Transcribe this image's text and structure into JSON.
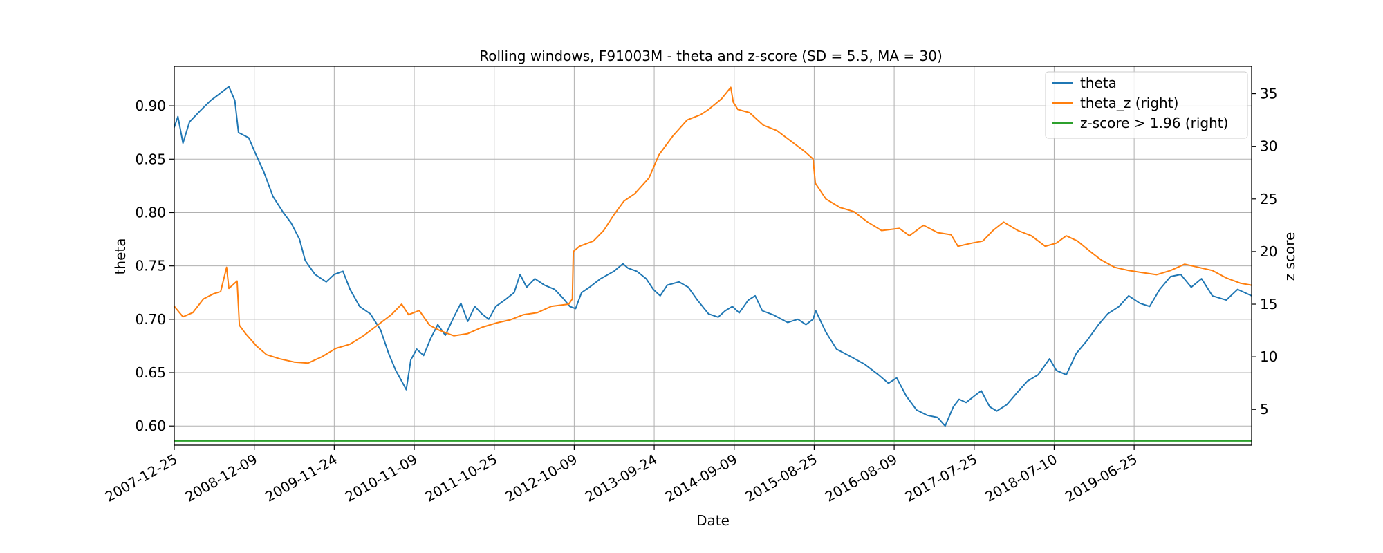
{
  "chart_data": {
    "type": "line",
    "title": "Rolling windows, F91003M - theta and z-score (SD = 5.5, MA = 30)",
    "xlabel": "Date",
    "ylabel_left": "theta",
    "ylabel_right": "z score",
    "x_range": [
      "2007-12-25",
      "2020-11-20"
    ],
    "ylim_left": [
      0.582,
      0.937
    ],
    "ylim_right": [
      1.6,
      37.6
    ],
    "x_ticks": [
      "2007-12-25",
      "2008-12-09",
      "2009-11-24",
      "2010-11-09",
      "2011-10-25",
      "2012-10-09",
      "2013-09-24",
      "2014-09-09",
      "2015-08-25",
      "2016-08-09",
      "2017-07-25",
      "2018-07-10",
      "2019-06-25"
    ],
    "y_ticks_left": [
      "0.60",
      "0.65",
      "0.70",
      "0.75",
      "0.80",
      "0.85",
      "0.90"
    ],
    "y_ticks_right": [
      "5",
      "10",
      "15",
      "20",
      "25",
      "30",
      "35"
    ],
    "grid": true,
    "legend_position": "top-right",
    "series": [
      {
        "name": "theta",
        "axis": "left",
        "color": "#1f77b4",
        "points": [
          [
            "2007-12-25",
            0.88
          ],
          [
            "2008-01-10",
            0.89
          ],
          [
            "2008-02-01",
            0.865
          ],
          [
            "2008-03-01",
            0.885
          ],
          [
            "2008-04-15",
            0.895
          ],
          [
            "2008-06-01",
            0.905
          ],
          [
            "2008-07-15",
            0.912
          ],
          [
            "2008-08-20",
            0.918
          ],
          [
            "2008-09-15",
            0.905
          ],
          [
            "2008-10-01",
            0.875
          ],
          [
            "2008-11-15",
            0.87
          ],
          [
            "2008-12-15",
            0.855
          ],
          [
            "2009-01-20",
            0.838
          ],
          [
            "2009-03-01",
            0.815
          ],
          [
            "2009-04-15",
            0.8
          ],
          [
            "2009-05-20",
            0.79
          ],
          [
            "2009-06-25",
            0.775
          ],
          [
            "2009-07-20",
            0.755
          ],
          [
            "2009-09-01",
            0.742
          ],
          [
            "2009-10-20",
            0.735
          ],
          [
            "2009-11-24",
            0.742
          ],
          [
            "2010-01-01",
            0.745
          ],
          [
            "2010-02-01",
            0.728
          ],
          [
            "2010-03-15",
            0.712
          ],
          [
            "2010-05-01",
            0.705
          ],
          [
            "2010-06-15",
            0.69
          ],
          [
            "2010-07-20",
            0.668
          ],
          [
            "2010-08-20",
            0.652
          ],
          [
            "2010-09-15",
            0.642
          ],
          [
            "2010-10-05",
            0.634
          ],
          [
            "2010-10-25",
            0.662
          ],
          [
            "2010-11-20",
            0.672
          ],
          [
            "2010-12-20",
            0.666
          ],
          [
            "2011-01-20",
            0.682
          ],
          [
            "2011-02-20",
            0.695
          ],
          [
            "2011-03-25",
            0.685
          ],
          [
            "2011-05-01",
            0.702
          ],
          [
            "2011-06-01",
            0.715
          ],
          [
            "2011-07-01",
            0.698
          ],
          [
            "2011-08-01",
            0.712
          ],
          [
            "2011-09-01",
            0.705
          ],
          [
            "2011-10-01",
            0.7
          ],
          [
            "2011-11-01",
            0.712
          ],
          [
            "2011-12-10",
            0.718
          ],
          [
            "2012-01-20",
            0.725
          ],
          [
            "2012-02-15",
            0.742
          ],
          [
            "2012-03-15",
            0.73
          ],
          [
            "2012-04-20",
            0.738
          ],
          [
            "2012-06-01",
            0.732
          ],
          [
            "2012-07-15",
            0.728
          ],
          [
            "2012-08-20",
            0.72
          ],
          [
            "2012-09-20",
            0.712
          ],
          [
            "2012-10-15",
            0.71
          ],
          [
            "2012-11-10",
            0.725
          ],
          [
            "2012-12-15",
            0.73
          ],
          [
            "2013-02-01",
            0.738
          ],
          [
            "2013-04-01",
            0.745
          ],
          [
            "2013-05-10",
            0.752
          ],
          [
            "2013-06-01",
            0.748
          ],
          [
            "2013-07-10",
            0.745
          ],
          [
            "2013-08-20",
            0.738
          ],
          [
            "2013-09-20",
            0.728
          ],
          [
            "2013-10-20",
            0.722
          ],
          [
            "2013-11-20",
            0.732
          ],
          [
            "2014-01-10",
            0.735
          ],
          [
            "2014-02-20",
            0.73
          ],
          [
            "2014-04-01",
            0.718
          ],
          [
            "2014-05-20",
            0.705
          ],
          [
            "2014-07-01",
            0.702
          ],
          [
            "2014-08-01",
            0.708
          ],
          [
            "2014-09-01",
            0.712
          ],
          [
            "2014-10-01",
            0.706
          ],
          [
            "2014-11-10",
            0.718
          ],
          [
            "2014-12-10",
            0.722
          ],
          [
            "2015-01-10",
            0.708
          ],
          [
            "2015-03-01",
            0.704
          ],
          [
            "2015-05-01",
            0.697
          ],
          [
            "2015-06-15",
            0.7
          ],
          [
            "2015-07-20",
            0.695
          ],
          [
            "2015-08-20",
            0.7
          ],
          [
            "2015-09-01",
            0.708
          ],
          [
            "2015-10-15",
            0.688
          ],
          [
            "2015-12-01",
            0.672
          ],
          [
            "2016-02-01",
            0.665
          ],
          [
            "2016-04-01",
            0.658
          ],
          [
            "2016-06-01",
            0.648
          ],
          [
            "2016-07-15",
            0.64
          ],
          [
            "2016-08-20",
            0.645
          ],
          [
            "2016-10-01",
            0.628
          ],
          [
            "2016-11-15",
            0.615
          ],
          [
            "2017-01-01",
            0.61
          ],
          [
            "2017-02-15",
            0.608
          ],
          [
            "2017-03-20",
            0.6
          ],
          [
            "2017-04-25",
            0.618
          ],
          [
            "2017-05-20",
            0.625
          ],
          [
            "2017-06-20",
            0.622
          ],
          [
            "2017-07-25",
            0.628
          ],
          [
            "2017-08-25",
            0.633
          ],
          [
            "2017-10-01",
            0.618
          ],
          [
            "2017-11-01",
            0.614
          ],
          [
            "2017-12-15",
            0.62
          ],
          [
            "2018-02-01",
            0.632
          ],
          [
            "2018-03-15",
            0.642
          ],
          [
            "2018-05-01",
            0.648
          ],
          [
            "2018-06-20",
            0.663
          ],
          [
            "2018-07-20",
            0.652
          ],
          [
            "2018-09-01",
            0.648
          ],
          [
            "2018-10-15",
            0.668
          ],
          [
            "2018-12-01",
            0.68
          ],
          [
            "2019-01-20",
            0.695
          ],
          [
            "2019-03-01",
            0.705
          ],
          [
            "2019-04-20",
            0.712
          ],
          [
            "2019-06-01",
            0.722
          ],
          [
            "2019-07-20",
            0.715
          ],
          [
            "2019-09-01",
            0.712
          ],
          [
            "2019-10-15",
            0.728
          ],
          [
            "2019-12-01",
            0.74
          ],
          [
            "2020-01-15",
            0.742
          ],
          [
            "2020-03-01",
            0.73
          ],
          [
            "2020-04-15",
            0.738
          ],
          [
            "2020-06-01",
            0.722
          ],
          [
            "2020-08-01",
            0.718
          ],
          [
            "2020-09-20",
            0.728
          ],
          [
            "2020-11-20",
            0.722
          ]
        ]
      },
      {
        "name": "theta_z (right)",
        "axis": "right",
        "color": "#ff7f0e",
        "points": [
          [
            "2007-12-25",
            14.8
          ],
          [
            "2008-02-01",
            13.8
          ],
          [
            "2008-03-15",
            14.2
          ],
          [
            "2008-05-01",
            15.5
          ],
          [
            "2008-06-15",
            16.0
          ],
          [
            "2008-07-15",
            16.2
          ],
          [
            "2008-08-10",
            18.5
          ],
          [
            "2008-08-20",
            16.5
          ],
          [
            "2008-09-25",
            17.2
          ],
          [
            "2008-10-05",
            13.0
          ],
          [
            "2008-11-01",
            12.2
          ],
          [
            "2008-12-20",
            11.0
          ],
          [
            "2009-02-01",
            10.2
          ],
          [
            "2009-04-01",
            9.8
          ],
          [
            "2009-06-01",
            9.5
          ],
          [
            "2009-08-01",
            9.4
          ],
          [
            "2009-10-01",
            10.0
          ],
          [
            "2009-12-01",
            10.8
          ],
          [
            "2010-02-01",
            11.2
          ],
          [
            "2010-04-01",
            12.0
          ],
          [
            "2010-06-01",
            13.0
          ],
          [
            "2010-08-01",
            14.0
          ],
          [
            "2010-09-15",
            15.0
          ],
          [
            "2010-10-15",
            14.0
          ],
          [
            "2010-12-01",
            14.4
          ],
          [
            "2011-01-15",
            13.0
          ],
          [
            "2011-03-01",
            12.5
          ],
          [
            "2011-05-01",
            12.0
          ],
          [
            "2011-07-01",
            12.2
          ],
          [
            "2011-09-01",
            12.8
          ],
          [
            "2011-11-01",
            13.2
          ],
          [
            "2012-01-01",
            13.5
          ],
          [
            "2012-03-01",
            14.0
          ],
          [
            "2012-05-01",
            14.2
          ],
          [
            "2012-07-01",
            14.8
          ],
          [
            "2012-09-15",
            15.0
          ],
          [
            "2012-10-01",
            15.5
          ],
          [
            "2012-10-05",
            20.0
          ],
          [
            "2012-11-01",
            20.5
          ],
          [
            "2013-01-01",
            21.0
          ],
          [
            "2013-02-15",
            22.0
          ],
          [
            "2013-04-01",
            23.5
          ],
          [
            "2013-05-15",
            24.8
          ],
          [
            "2013-07-01",
            25.5
          ],
          [
            "2013-09-01",
            27.0
          ],
          [
            "2013-10-15",
            29.2
          ],
          [
            "2013-12-15",
            31.0
          ],
          [
            "2014-02-15",
            32.5
          ],
          [
            "2014-04-15",
            33.0
          ],
          [
            "2014-05-20",
            33.5
          ],
          [
            "2014-07-15",
            34.5
          ],
          [
            "2014-08-25",
            35.6
          ],
          [
            "2014-09-05",
            34.2
          ],
          [
            "2014-09-25",
            33.5
          ],
          [
            "2014-11-15",
            33.2
          ],
          [
            "2015-01-15",
            32.0
          ],
          [
            "2015-03-15",
            31.5
          ],
          [
            "2015-05-15",
            30.5
          ],
          [
            "2015-07-15",
            29.5
          ],
          [
            "2015-08-20",
            28.8
          ],
          [
            "2015-08-30",
            26.5
          ],
          [
            "2015-10-15",
            25.0
          ],
          [
            "2015-12-15",
            24.2
          ],
          [
            "2016-02-15",
            23.8
          ],
          [
            "2016-04-15",
            22.8
          ],
          [
            "2016-06-15",
            22.0
          ],
          [
            "2016-09-01",
            22.2
          ],
          [
            "2016-10-15",
            21.5
          ],
          [
            "2016-12-15",
            22.5
          ],
          [
            "2017-02-15",
            21.8
          ],
          [
            "2017-04-15",
            21.6
          ],
          [
            "2017-05-15",
            20.5
          ],
          [
            "2017-07-15",
            20.8
          ],
          [
            "2017-09-01",
            21.0
          ],
          [
            "2017-10-15",
            22.0
          ],
          [
            "2017-12-01",
            22.8
          ],
          [
            "2018-02-01",
            22.0
          ],
          [
            "2018-04-01",
            21.5
          ],
          [
            "2018-06-01",
            20.5
          ],
          [
            "2018-07-20",
            20.8
          ],
          [
            "2018-09-01",
            21.5
          ],
          [
            "2018-10-20",
            21.0
          ],
          [
            "2018-12-15",
            20.0
          ],
          [
            "2019-02-01",
            19.2
          ],
          [
            "2019-04-01",
            18.5
          ],
          [
            "2019-06-01",
            18.2
          ],
          [
            "2019-08-01",
            18.0
          ],
          [
            "2019-10-01",
            17.8
          ],
          [
            "2019-12-01",
            18.2
          ],
          [
            "2020-02-01",
            18.8
          ],
          [
            "2020-04-01",
            18.5
          ],
          [
            "2020-06-01",
            18.2
          ],
          [
            "2020-08-01",
            17.5
          ],
          [
            "2020-10-01",
            17.0
          ],
          [
            "2020-11-20",
            16.8
          ]
        ]
      },
      {
        "name": "z-score > 1.96 (right)",
        "axis": "right",
        "color": "#2ca02c",
        "points": [
          [
            "2007-12-25",
            2.0
          ],
          [
            "2020-11-20",
            2.0
          ]
        ]
      }
    ]
  }
}
